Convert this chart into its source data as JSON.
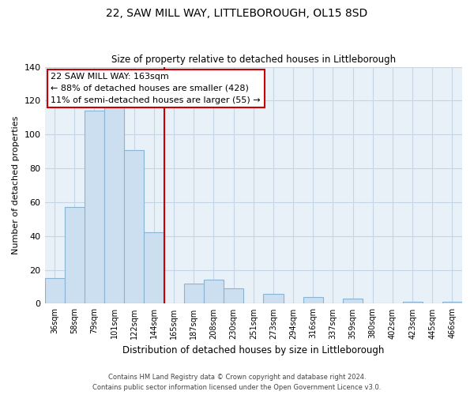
{
  "title": "22, SAW MILL WAY, LITTLEBOROUGH, OL15 8SD",
  "subtitle": "Size of property relative to detached houses in Littleborough",
  "xlabel": "Distribution of detached houses by size in Littleborough",
  "ylabel": "Number of detached properties",
  "bar_labels": [
    "36sqm",
    "58sqm",
    "79sqm",
    "101sqm",
    "122sqm",
    "144sqm",
    "165sqm",
    "187sqm",
    "208sqm",
    "230sqm",
    "251sqm",
    "273sqm",
    "294sqm",
    "316sqm",
    "337sqm",
    "359sqm",
    "380sqm",
    "402sqm",
    "423sqm",
    "445sqm",
    "466sqm"
  ],
  "bar_values": [
    15,
    57,
    114,
    118,
    91,
    42,
    0,
    12,
    14,
    9,
    0,
    6,
    0,
    4,
    0,
    3,
    0,
    0,
    1,
    0,
    1
  ],
  "bar_color": "#ccdff0",
  "bar_edge_color": "#8ab4d4",
  "highlight_line_color": "#cc0000",
  "ylim": [
    0,
    140
  ],
  "yticks": [
    0,
    20,
    40,
    60,
    80,
    100,
    120,
    140
  ],
  "annotation_title": "22 SAW MILL WAY: 163sqm",
  "annotation_line1": "← 88% of detached houses are smaller (428)",
  "annotation_line2": "11% of semi-detached houses are larger (55) →",
  "annotation_box_color": "#ffffff",
  "annotation_box_edge": "#cc0000",
  "footer_line1": "Contains HM Land Registry data © Crown copyright and database right 2024.",
  "footer_line2": "Contains public sector information licensed under the Open Government Licence v3.0.",
  "plot_bg_color": "#e8f0f8",
  "fig_bg_color": "#ffffff",
  "grid_color": "#c5d5e5"
}
